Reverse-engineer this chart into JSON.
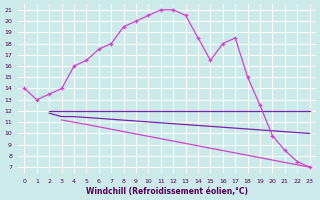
{
  "bg_color": "#cceaea",
  "line_color1": "#cc44cc",
  "line_color2": "#7722aa",
  "line_color3": "#7722aa",
  "line_color4": "#cc44cc",
  "grid_color": "#ffffff",
  "xlabel": "Windchill (Refroidissement éolien,°C)",
  "xlabel_color": "#550055",
  "tick_color": "#550055",
  "ylim": [
    6.5,
    21.5
  ],
  "xlim": [
    -0.5,
    23.5
  ],
  "yticks": [
    7,
    8,
    9,
    10,
    11,
    12,
    13,
    14,
    15,
    16,
    17,
    18,
    19,
    20,
    21
  ],
  "xticks": [
    0,
    1,
    2,
    3,
    4,
    5,
    6,
    7,
    8,
    9,
    10,
    11,
    12,
    13,
    14,
    15,
    16,
    17,
    18,
    19,
    20,
    21,
    22,
    23
  ],
  "curve1_x": [
    0,
    1,
    2,
    3,
    4,
    5,
    6,
    7,
    8,
    9,
    10,
    11,
    12,
    13,
    14,
    15,
    16,
    17,
    18,
    19,
    20,
    21,
    22,
    23
  ],
  "curve1_y": [
    14.0,
    13.0,
    13.5,
    14.0,
    16.0,
    16.5,
    17.5,
    18.0,
    19.5,
    20.0,
    20.5,
    21.0,
    21.0,
    20.5,
    18.5,
    16.5,
    18.0,
    18.5,
    15.0,
    12.5,
    9.8,
    8.5,
    7.5,
    7.0
  ],
  "curve2_x": [
    2,
    3,
    4,
    23
  ],
  "curve2_y": [
    12.0,
    12.0,
    12.0,
    12.0
  ],
  "curve3_x": [
    2,
    3,
    4,
    23
  ],
  "curve3_y": [
    11.8,
    11.5,
    11.5,
    10.0
  ],
  "curve4_x": [
    3,
    4,
    5,
    23
  ],
  "curve4_y": [
    11.2,
    11.0,
    10.8,
    7.0
  ]
}
